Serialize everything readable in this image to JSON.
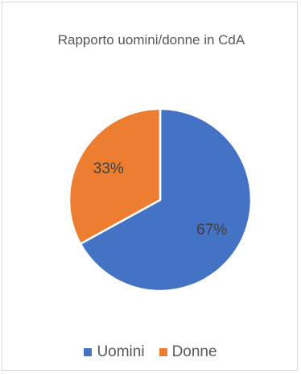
{
  "chart_data": {
    "type": "pie",
    "title": "Rapporto uomini/donne in CdA",
    "categories": [
      "Uomini",
      "Donne"
    ],
    "values": [
      67,
      33
    ],
    "data_labels": [
      "67%",
      "33%"
    ],
    "colors": [
      "#4472c4",
      "#ed7d31"
    ],
    "legend": {
      "placement": "bottom",
      "items": [
        "Uomini",
        "Donne"
      ]
    },
    "grid": false
  }
}
